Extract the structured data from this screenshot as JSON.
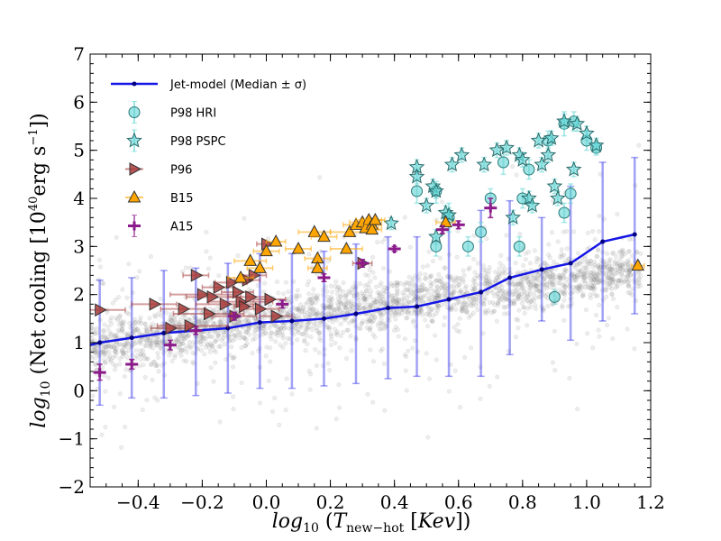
{
  "chart_data": {
    "type": "scatter",
    "xlabel": "log10 (T_new-hot [Kev])",
    "ylabel": "log10 (Net cooling [10^40 erg s^-1])",
    "xlim": [
      -0.55,
      1.2
    ],
    "ylim": [
      -2,
      7
    ],
    "x_ticks": [
      "−0.4",
      "−0.2",
      "0.0",
      "0.2",
      "0.4",
      "0.6",
      "0.8",
      "1.0",
      "1.2"
    ],
    "y_ticks": [
      "−2",
      "−1",
      "0",
      "1",
      "2",
      "3",
      "4",
      "5",
      "6",
      "7"
    ],
    "grid": false,
    "legend_position": "top-left",
    "series": [
      {
        "name": "Jet-model (Median ± σ)",
        "kind": "line_with_errorbars",
        "color": "#1515e6",
        "x": [
          -0.52,
          -0.42,
          -0.32,
          -0.22,
          -0.12,
          -0.02,
          0.08,
          0.18,
          0.28,
          0.38,
          0.47,
          0.57,
          0.67,
          0.76,
          0.86,
          0.95,
          1.05,
          1.15
        ],
        "y": [
          1.0,
          1.1,
          1.2,
          1.25,
          1.3,
          1.42,
          1.45,
          1.5,
          1.6,
          1.72,
          1.75,
          1.9,
          2.05,
          2.35,
          2.52,
          2.65,
          3.1,
          3.25
        ],
        "y_low": [
          -0.3,
          -0.15,
          -0.15,
          -0.1,
          -0.05,
          0.05,
          0.05,
          0.1,
          0.15,
          0.25,
          0.3,
          0.3,
          0.3,
          0.75,
          1.45,
          1.05,
          1.45,
          1.6
        ],
        "y_high": [
          2.3,
          2.35,
          2.5,
          2.55,
          2.65,
          2.85,
          2.85,
          2.9,
          3.05,
          3.2,
          3.2,
          3.5,
          3.75,
          3.95,
          3.6,
          4.25,
          4.75,
          4.85
        ]
      },
      {
        "name": "P98 HRI",
        "kind": "marker_errorbar",
        "marker": "circle",
        "color": "#5fd3d3",
        "points": [
          {
            "x": 0.47,
            "y": 4.15,
            "ylo": 3.9,
            "yhi": 4.4
          },
          {
            "x": 0.53,
            "y": 3.0,
            "ylo": 2.8,
            "yhi": 3.2
          },
          {
            "x": 0.53,
            "y": 4.15,
            "ylo": 3.9,
            "yhi": 4.35
          },
          {
            "x": 0.57,
            "y": 3.6,
            "ylo": 3.3,
            "yhi": 3.9
          },
          {
            "x": 0.63,
            "y": 3.0,
            "ylo": 2.8,
            "yhi": 3.2
          },
          {
            "x": 0.67,
            "y": 3.3,
            "ylo": 3.1,
            "yhi": 3.5
          },
          {
            "x": 0.7,
            "y": 4.0,
            "ylo": 3.8,
            "yhi": 4.2
          },
          {
            "x": 0.74,
            "y": 4.75,
            "ylo": 4.5,
            "yhi": 5.0
          },
          {
            "x": 0.79,
            "y": 3.0,
            "ylo": 2.8,
            "yhi": 3.2
          },
          {
            "x": 0.8,
            "y": 4.0,
            "ylo": 3.8,
            "yhi": 4.2
          },
          {
            "x": 0.82,
            "y": 4.6,
            "ylo": 4.4,
            "yhi": 4.8
          },
          {
            "x": 0.88,
            "y": 5.2,
            "ylo": 5.0,
            "yhi": 5.4
          },
          {
            "x": 0.9,
            "y": 1.95,
            "ylo": 1.8,
            "yhi": 2.1
          },
          {
            "x": 0.93,
            "y": 5.55,
            "ylo": 5.3,
            "yhi": 5.8
          },
          {
            "x": 0.93,
            "y": 3.7,
            "ylo": 3.5,
            "yhi": 3.9
          },
          {
            "x": 0.95,
            "y": 4.1,
            "ylo": 3.9,
            "yhi": 4.3
          },
          {
            "x": 0.96,
            "y": 5.6,
            "ylo": 5.4,
            "yhi": 5.8
          },
          {
            "x": 1.0,
            "y": 5.2,
            "ylo": 5.0,
            "yhi": 5.4
          },
          {
            "x": 1.03,
            "y": 5.05,
            "ylo": 4.9,
            "yhi": 5.2
          }
        ]
      },
      {
        "name": "P98 PSPC",
        "kind": "marker_errorbar",
        "marker": "star",
        "color": "#5fd3d3",
        "points": [
          {
            "x": 0.39,
            "y": 3.48,
            "ylo": 3.35,
            "yhi": 3.6
          },
          {
            "x": 0.47,
            "y": 4.65,
            "ylo": 4.5,
            "yhi": 4.8
          },
          {
            "x": 0.47,
            "y": 4.45,
            "ylo": 4.3,
            "yhi": 4.6
          },
          {
            "x": 0.5,
            "y": 3.85,
            "ylo": 3.7,
            "yhi": 4.0
          },
          {
            "x": 0.52,
            "y": 4.25,
            "ylo": 4.1,
            "yhi": 4.4
          },
          {
            "x": 0.53,
            "y": 3.2,
            "ylo": 3.05,
            "yhi": 3.35
          },
          {
            "x": 0.53,
            "y": 4.15,
            "ylo": 4.0,
            "yhi": 4.3
          },
          {
            "x": 0.56,
            "y": 3.7,
            "ylo": 3.55,
            "yhi": 3.85
          },
          {
            "x": 0.57,
            "y": 3.65,
            "ylo": 3.5,
            "yhi": 3.8
          },
          {
            "x": 0.58,
            "y": 4.7,
            "ylo": 4.55,
            "yhi": 4.85
          },
          {
            "x": 0.61,
            "y": 4.9,
            "ylo": 4.75,
            "yhi": 5.05
          },
          {
            "x": 0.68,
            "y": 4.7,
            "ylo": 4.55,
            "yhi": 4.85
          },
          {
            "x": 0.72,
            "y": 5.0,
            "ylo": 4.85,
            "yhi": 5.15
          },
          {
            "x": 0.75,
            "y": 5.05,
            "ylo": 4.9,
            "yhi": 5.2
          },
          {
            "x": 0.77,
            "y": 3.6,
            "ylo": 3.45,
            "yhi": 3.75
          },
          {
            "x": 0.79,
            "y": 4.9,
            "ylo": 4.75,
            "yhi": 5.05
          },
          {
            "x": 0.8,
            "y": 4.8,
            "ylo": 4.65,
            "yhi": 4.95
          },
          {
            "x": 0.82,
            "y": 4.0,
            "ylo": 3.85,
            "yhi": 4.15
          },
          {
            "x": 0.83,
            "y": 3.85,
            "ylo": 3.7,
            "yhi": 4.0
          },
          {
            "x": 0.85,
            "y": 5.2,
            "ylo": 5.05,
            "yhi": 5.35
          },
          {
            "x": 0.86,
            "y": 4.7,
            "ylo": 4.55,
            "yhi": 4.85
          },
          {
            "x": 0.88,
            "y": 4.9,
            "ylo": 4.75,
            "yhi": 5.05
          },
          {
            "x": 0.89,
            "y": 5.25,
            "ylo": 5.1,
            "yhi": 5.4
          },
          {
            "x": 0.9,
            "y": 4.25,
            "ylo": 4.1,
            "yhi": 4.4
          },
          {
            "x": 0.91,
            "y": 4.0,
            "ylo": 3.85,
            "yhi": 4.15
          },
          {
            "x": 0.93,
            "y": 5.6,
            "ylo": 5.45,
            "yhi": 5.75
          },
          {
            "x": 0.96,
            "y": 4.6,
            "ylo": 4.45,
            "yhi": 4.75
          },
          {
            "x": 0.97,
            "y": 5.55,
            "ylo": 5.4,
            "yhi": 5.7
          },
          {
            "x": 1.0,
            "y": 5.35,
            "ylo": 5.2,
            "yhi": 5.5
          },
          {
            "x": 1.03,
            "y": 5.1,
            "ylo": 4.95,
            "yhi": 5.25
          }
        ]
      },
      {
        "name": "P96",
        "kind": "marker_errorbar",
        "marker": "triangle-right",
        "color": "#a83c3c",
        "points": [
          {
            "x": -0.52,
            "y": 1.68,
            "xlo": -0.55,
            "xhi": -0.44
          },
          {
            "x": -0.35,
            "y": 1.8,
            "xlo": -0.42,
            "xhi": -0.28
          },
          {
            "x": -0.3,
            "y": 1.3,
            "xlo": -0.36,
            "xhi": -0.24
          },
          {
            "x": -0.26,
            "y": 1.7,
            "xlo": -0.33,
            "xhi": -0.19
          },
          {
            "x": -0.24,
            "y": 1.35,
            "xlo": -0.34,
            "xhi": -0.12
          },
          {
            "x": -0.22,
            "y": 2.4,
            "xlo": -0.26,
            "xhi": -0.18
          },
          {
            "x": -0.2,
            "y": 2.0,
            "xlo": -0.3,
            "xhi": -0.1
          },
          {
            "x": -0.18,
            "y": 1.6,
            "xlo": -0.29,
            "xhi": -0.07
          },
          {
            "x": -0.17,
            "y": 1.95,
            "xlo": -0.25,
            "xhi": -0.08
          },
          {
            "x": -0.15,
            "y": 2.15,
            "xlo": -0.2,
            "xhi": -0.1
          },
          {
            "x": -0.13,
            "y": 1.8,
            "xlo": -0.22,
            "xhi": -0.02
          },
          {
            "x": -0.11,
            "y": 2.25,
            "xlo": -0.16,
            "xhi": -0.06
          },
          {
            "x": -0.1,
            "y": 1.55,
            "xlo": -0.17,
            "xhi": -0.03
          },
          {
            "x": -0.09,
            "y": 2.05,
            "xlo": -0.14,
            "xhi": -0.04
          },
          {
            "x": -0.08,
            "y": 1.85,
            "xlo": -0.18,
            "xhi": 0.02
          },
          {
            "x": -0.07,
            "y": 1.75,
            "xlo": -0.1,
            "xhi": -0.04
          },
          {
            "x": -0.06,
            "y": 2.3,
            "xlo": -0.1,
            "xhi": -0.02
          },
          {
            "x": -0.05,
            "y": 1.95,
            "xlo": -0.12,
            "xhi": 0.0
          },
          {
            "x": -0.04,
            "y": 2.4,
            "xlo": -0.08,
            "xhi": 0.0
          },
          {
            "x": -0.02,
            "y": 1.7,
            "xlo": -0.08,
            "xhi": 0.04
          },
          {
            "x": 0.0,
            "y": 3.05,
            "xlo": -0.03,
            "xhi": 0.03
          },
          {
            "x": 0.01,
            "y": 1.9,
            "xlo": -0.04,
            "xhi": 0.06
          },
          {
            "x": 0.03,
            "y": 1.55,
            "xlo": -0.02,
            "xhi": 0.08
          },
          {
            "x": 0.3,
            "y": 2.65,
            "xlo": 0.27,
            "xhi": 0.33
          }
        ]
      },
      {
        "name": "B15",
        "kind": "marker_errorbar",
        "marker": "triangle-up",
        "color": "#ffa500",
        "points": [
          {
            "x": -0.08,
            "y": 2.35,
            "xlo": -0.12,
            "xhi": -0.04
          },
          {
            "x": -0.05,
            "y": 2.7,
            "xlo": -0.1,
            "xhi": 0.0
          },
          {
            "x": -0.02,
            "y": 2.55,
            "xlo": -0.06,
            "xhi": 0.02
          },
          {
            "x": 0.0,
            "y": 2.9,
            "xlo": -0.04,
            "xhi": 0.04
          },
          {
            "x": 0.03,
            "y": 3.1,
            "xlo": 0.0,
            "xhi": 0.06
          },
          {
            "x": 0.1,
            "y": 2.95,
            "xlo": 0.06,
            "xhi": 0.14
          },
          {
            "x": 0.15,
            "y": 3.3,
            "xlo": 0.1,
            "xhi": 0.2
          },
          {
            "x": 0.16,
            "y": 2.75,
            "xlo": 0.12,
            "xhi": 0.2
          },
          {
            "x": 0.16,
            "y": 2.55,
            "xlo": 0.13,
            "xhi": 0.19
          },
          {
            "x": 0.18,
            "y": 3.2,
            "xlo": 0.14,
            "xhi": 0.22
          },
          {
            "x": 0.25,
            "y": 2.95,
            "xlo": 0.2,
            "xhi": 0.3
          },
          {
            "x": 0.26,
            "y": 3.3,
            "xlo": 0.2,
            "xhi": 0.32
          },
          {
            "x": 0.28,
            "y": 3.45,
            "xlo": 0.24,
            "xhi": 0.32
          },
          {
            "x": 0.3,
            "y": 3.5,
            "xlo": 0.26,
            "xhi": 0.34
          },
          {
            "x": 0.31,
            "y": 3.38,
            "xlo": 0.27,
            "xhi": 0.35
          },
          {
            "x": 0.32,
            "y": 3.55,
            "xlo": 0.28,
            "xhi": 0.36
          },
          {
            "x": 0.33,
            "y": 3.45,
            "xlo": 0.3,
            "xhi": 0.36
          },
          {
            "x": 0.33,
            "y": 3.35,
            "xlo": 0.3,
            "xhi": 0.36
          },
          {
            "x": 0.34,
            "y": 3.55,
            "xlo": 0.31,
            "xhi": 0.37
          },
          {
            "x": 0.56,
            "y": 3.5,
            "xlo": 0.53,
            "xhi": 0.59
          },
          {
            "x": 1.16,
            "y": 2.6,
            "xlo": 1.14,
            "xhi": 1.18
          }
        ]
      },
      {
        "name": "A15",
        "kind": "marker_errorbar",
        "marker": "plus",
        "color": "#8b1a8b",
        "points": [
          {
            "x": -0.52,
            "y": 0.38,
            "ylo": 0.22,
            "yhi": 0.55
          },
          {
            "x": -0.42,
            "y": 0.55,
            "ylo": 0.45,
            "yhi": 0.65
          },
          {
            "x": -0.3,
            "y": 0.95,
            "ylo": 0.85,
            "yhi": 1.05
          },
          {
            "x": -0.22,
            "y": 1.25,
            "ylo": 1.17,
            "yhi": 1.33
          },
          {
            "x": -0.1,
            "y": 1.55,
            "ylo": 1.47,
            "yhi": 1.63
          },
          {
            "x": 0.05,
            "y": 1.8,
            "ylo": 1.72,
            "yhi": 1.88
          },
          {
            "x": 0.18,
            "y": 2.35,
            "ylo": 2.27,
            "yhi": 2.43
          },
          {
            "x": 0.3,
            "y": 2.65,
            "ylo": 2.57,
            "yhi": 2.73
          },
          {
            "x": 0.4,
            "y": 2.95,
            "ylo": 2.9,
            "yhi": 3.0
          },
          {
            "x": 0.55,
            "y": 3.35,
            "ylo": 3.27,
            "yhi": 3.43
          },
          {
            "x": 0.6,
            "y": 3.45,
            "ylo": 3.37,
            "yhi": 3.53
          },
          {
            "x": 0.7,
            "y": 3.8,
            "ylo": 3.6,
            "yhi": 4.0
          }
        ]
      }
    ],
    "background_cloud": {
      "description_free": true,
      "color": "#888888",
      "count": 2600
    }
  },
  "legend": {
    "items": [
      {
        "label": "Jet-model (Median $\\pm$ $\\sigma$)",
        "text": "Jet-model (Median ± σ)"
      },
      {
        "label": "P98 HRI",
        "text": "P98 HRI"
      },
      {
        "label": "P98 PSPC",
        "text": "P98 PSPC"
      },
      {
        "label": "P96",
        "text": "P96"
      },
      {
        "label": "B15",
        "text": "B15"
      },
      {
        "label": "A15",
        "text": "A15"
      }
    ]
  }
}
